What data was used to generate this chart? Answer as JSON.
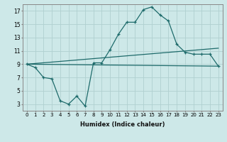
{
  "xlabel": "Humidex (Indice chaleur)",
  "bg_color": "#cde8e8",
  "line_color": "#1e6b6b",
  "grid_color": "#b0d0d0",
  "xlim": [
    -0.5,
    23.5
  ],
  "ylim": [
    2,
    18
  ],
  "yticks": [
    3,
    5,
    7,
    9,
    11,
    13,
    15,
    17
  ],
  "xticks": [
    0,
    1,
    2,
    3,
    4,
    5,
    6,
    7,
    8,
    9,
    10,
    11,
    12,
    13,
    14,
    15,
    16,
    17,
    18,
    19,
    20,
    21,
    22,
    23
  ],
  "main_x": [
    0,
    1,
    2,
    3,
    4,
    5,
    6,
    7,
    8,
    9,
    10,
    11,
    12,
    13,
    14,
    15,
    16,
    17,
    18,
    19,
    20,
    21,
    22,
    23
  ],
  "main_y": [
    9.0,
    8.5,
    7.0,
    6.8,
    3.5,
    3.0,
    4.2,
    2.7,
    9.2,
    9.2,
    11.2,
    13.5,
    15.3,
    15.3,
    17.2,
    17.6,
    16.4,
    15.5,
    12.0,
    10.8,
    10.5,
    10.5,
    10.5,
    8.7
  ],
  "line2_x": [
    0,
    23
  ],
  "line2_y": [
    9.0,
    11.4
  ],
  "line3_x": [
    0,
    23
  ],
  "line3_y": [
    9.0,
    8.7
  ]
}
